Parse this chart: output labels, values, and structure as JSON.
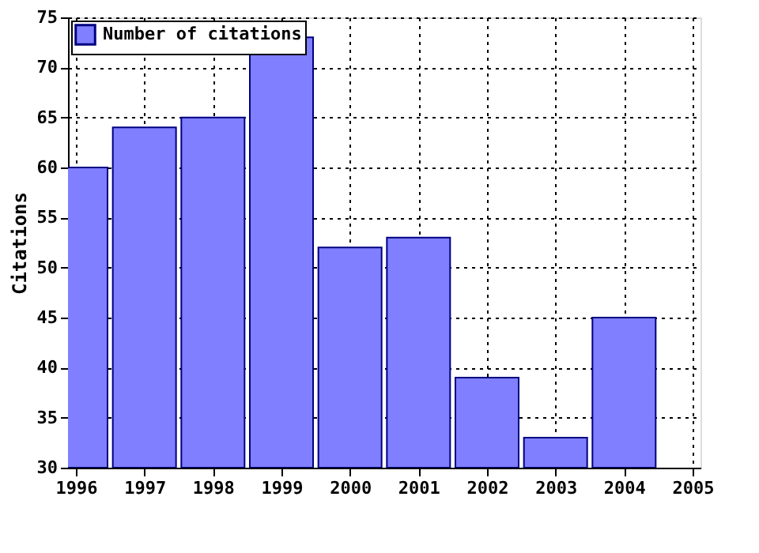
{
  "chart_data": {
    "type": "bar",
    "ylabel": "Citations",
    "x": [
      1996,
      1997,
      1998,
      1999,
      2000,
      2001,
      2002,
      2003,
      2004
    ],
    "series": [
      {
        "name": "Number of citations",
        "color": "#7f7fff",
        "values": [
          60,
          64,
          65,
          73,
          52,
          53,
          39,
          33,
          45
        ]
      }
    ],
    "xlim": [
      1996,
      2005
    ],
    "xticks": [
      1996,
      1997,
      1998,
      1999,
      2000,
      2001,
      2002,
      2003,
      2004,
      2005
    ],
    "ylim": [
      30,
      75
    ],
    "yticks": [
      30,
      35,
      40,
      45,
      50,
      55,
      60,
      65,
      70,
      75
    ],
    "grid": true,
    "legend": "top left"
  }
}
